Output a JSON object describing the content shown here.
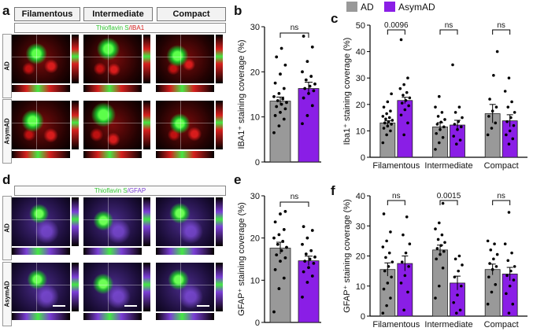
{
  "panel_labels": {
    "a": "a",
    "b": "b",
    "c": "c",
    "d": "d",
    "e": "e",
    "f": "f"
  },
  "columns": [
    "Filamentous",
    "Intermediate",
    "Compact"
  ],
  "rows": [
    "AD",
    "AsymAD"
  ],
  "stain_top": {
    "part1": "Thioflavin S",
    "part2": "/IBA1"
  },
  "stain_bottom": {
    "part1": "Thioflavin S",
    "part2": "/GFAP"
  },
  "legend": [
    {
      "label": "AD",
      "color": "#999999"
    },
    {
      "label": "AsymAD",
      "color": "#8a1ee6"
    }
  ],
  "colors": {
    "ad": "#999999",
    "asym": "#8a1ee6",
    "red_stain": "#d6201e",
    "green_stain": "#37e33a",
    "purple_stain": "#7b3fd6"
  },
  "chart_data": [
    {
      "id": "b",
      "type": "bar",
      "categories": [
        "AD",
        "AsymAD"
      ],
      "values": [
        13.5,
        16.3
      ],
      "errors": [
        0.9,
        1.4
      ],
      "ylabel": "IBA1⁺ staining coverage (%)",
      "ylim": [
        0,
        30
      ],
      "yticks": [
        0,
        10,
        20,
        30
      ],
      "significance": [
        {
          "label": "ns"
        }
      ],
      "points": [
        [
          6.5,
          8,
          9.5,
          10.3,
          11,
          11.8,
          12.3,
          12.8,
          13.2,
          13.6,
          14,
          14.5,
          15.2,
          16.3,
          17.5,
          19.5,
          21.5,
          23.3,
          25.2
        ],
        [
          8.5,
          10.3,
          12.5,
          14.2,
          15.2,
          15.8,
          16.3,
          16.8,
          17.3,
          18.2,
          19,
          20,
          22.3,
          25.5,
          27.9
        ]
      ]
    },
    {
      "id": "c",
      "type": "bar",
      "categories": [
        "Filamentous",
        "Intermediate",
        "Compact"
      ],
      "series": [
        {
          "name": "AD",
          "values": [
            13,
            11.5,
            16.5
          ]
        },
        {
          "name": "AsymAD",
          "values": [
            21.5,
            12.2,
            13.8
          ]
        }
      ],
      "errors": [
        [
          0.8,
          1.2
        ],
        [
          1.6,
          1.8
        ],
        [
          3.5,
          2.3
        ]
      ],
      "ylabel": "Iba1⁺ staining coverage (%)",
      "ylim": [
        0,
        50
      ],
      "yticks": [
        0,
        10,
        20,
        30,
        40,
        50
      ],
      "significance": [
        {
          "label": "0.0096"
        },
        {
          "label": "ns"
        },
        {
          "label": "ns"
        }
      ],
      "points": [
        [
          [
            5.5,
            8.5,
            10,
            11,
            11.8,
            12.5,
            13,
            13.5,
            14,
            14.5,
            15,
            15.5,
            16.5,
            17.5,
            19,
            21,
            24
          ],
          [
            8.5,
            13,
            16,
            18,
            19.5,
            20.5,
            21.5,
            22.5,
            23.5,
            24.5,
            26,
            27.5,
            30,
            44.5
          ]
        ],
        [
          [
            3,
            5.5,
            7.5,
            9,
            10.5,
            11.5,
            12.5,
            13.3,
            14.3,
            15.5,
            17,
            19,
            23
          ],
          [
            5,
            6.5,
            8,
            10.5,
            11.5,
            12.5,
            13.5,
            15,
            17,
            19,
            35
          ]
        ],
        [
          [
            8.5,
            11,
            13,
            15.5,
            17.5,
            19,
            22,
            31,
            40
          ],
          [
            5,
            7,
            8.5,
            10,
            12,
            13.5,
            15,
            17,
            19,
            21,
            25,
            30
          ]
        ]
      ]
    },
    {
      "id": "e",
      "type": "bar",
      "categories": [
        "AD",
        "AsymAD"
      ],
      "values": [
        17.6,
        14.6
      ],
      "errors": [
        1.4,
        1.1
      ],
      "ylabel": "GFAP⁺ staining coverage (%)",
      "ylim": [
        0,
        30
      ],
      "yticks": [
        0,
        10,
        20,
        30
      ],
      "significance": [
        {
          "label": "ns"
        }
      ],
      "points": [
        [
          2.5,
          8,
          10.5,
          12.5,
          14.5,
          15.3,
          16,
          17,
          17.8,
          18.5,
          19.2,
          20,
          20.8,
          22,
          23.8,
          25.7,
          26.3
        ],
        [
          6,
          9.5,
          11,
          12,
          13,
          14,
          14.5,
          15,
          15.5,
          16.2,
          17,
          18.5,
          20,
          21.8,
          22.7
        ]
      ]
    },
    {
      "id": "f",
      "type": "bar",
      "categories": [
        "Filamentous",
        "Intermediate",
        "Compact"
      ],
      "series": [
        {
          "name": "AD",
          "values": [
            15.5,
            22,
            15.5
          ]
        },
        {
          "name": "AsymAD",
          "values": [
            17.5,
            11,
            14
          ]
        }
      ],
      "errors": [
        [
          2.2,
          2.5
        ],
        [
          1.6,
          2.3
        ],
        [
          1.8,
          2.2
        ]
      ],
      "ylabel": "GFAP⁺ staining coverage (%)",
      "ylim": [
        0,
        40
      ],
      "yticks": [
        0,
        10,
        20,
        30,
        40
      ],
      "significance": [
        {
          "label": "ns"
        },
        {
          "label": "0.0015"
        },
        {
          "label": "ns"
        }
      ],
      "points": [
        [
          [
            1,
            3.5,
            6,
            9,
            11,
            13,
            15,
            16.5,
            18,
            19.5,
            21,
            23,
            25,
            28,
            34
          ],
          [
            2,
            8,
            11,
            13.5,
            16.5,
            18,
            21,
            24,
            27,
            33
          ]
        ],
        [
          [
            6,
            10,
            16,
            19,
            20.5,
            21.5,
            22.5,
            23.5,
            24.5,
            25.5,
            27,
            29,
            31,
            37.5
          ],
          [
            1,
            2,
            4.5,
            7,
            10,
            13,
            15,
            17,
            19,
            20
          ]
        ],
        [
          [
            4,
            8,
            10.5,
            13,
            15.5,
            16.5,
            17.5,
            19,
            20.5,
            22,
            24,
            25
          ],
          [
            1,
            4,
            7.5,
            10,
            12,
            13.5,
            15,
            16.5,
            18.5,
            21,
            24,
            34.5
          ]
        ]
      ]
    }
  ]
}
